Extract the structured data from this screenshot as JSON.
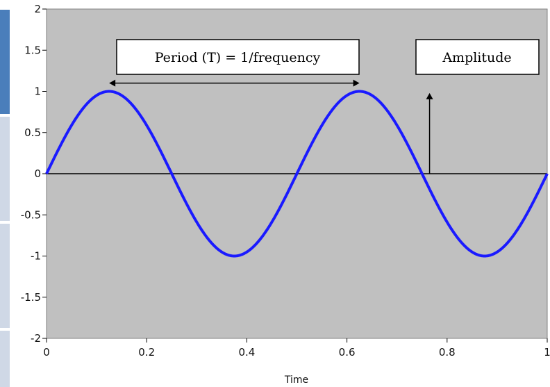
{
  "chart_data": {
    "type": "line",
    "title": "",
    "xlabel": "Time",
    "ylabel": "",
    "xlim": [
      0,
      1
    ],
    "ylim": [
      -2,
      2
    ],
    "x_ticks": [
      0,
      0.2,
      0.4,
      0.6,
      0.8,
      1
    ],
    "x_tick_labels": [
      "0",
      "0.2",
      "0.4",
      "0.6",
      "0.8",
      "1"
    ],
    "y_ticks": [
      2,
      1.5,
      1,
      0.5,
      0,
      -0.5,
      -1,
      -1.5,
      -2
    ],
    "y_tick_labels": [
      "2",
      "1.5",
      "1",
      "0.5",
      "0",
      "-0.5",
      "-1",
      "-1.5",
      "-2"
    ],
    "grid": false,
    "series": [
      {
        "function": "sine",
        "amplitude": 1,
        "frequency": 2,
        "x_range": [
          0,
          1
        ],
        "sample_points": [
          {
            "x": 0,
            "y": 0
          },
          {
            "x": 0.125,
            "y": 1
          },
          {
            "x": 0.25,
            "y": 0
          },
          {
            "x": 0.375,
            "y": -1
          },
          {
            "x": 0.5,
            "y": 0
          },
          {
            "x": 0.625,
            "y": 1
          },
          {
            "x": 0.75,
            "y": 0
          },
          {
            "x": 0.875,
            "y": -1
          },
          {
            "x": 1,
            "y": 0
          }
        ],
        "color": "#1a1aff"
      }
    ],
    "annotations": [
      {
        "id": "period",
        "text": "Period (T) = 1/frequency",
        "arrow": "double-headed horizontal",
        "from": {
          "x": 0.125,
          "y": 1.1
        },
        "to": {
          "x": 0.625,
          "y": 1.1
        }
      },
      {
        "id": "amplitude",
        "text": "Amplitude",
        "arrow": "vertical up",
        "from": {
          "x": 0.765,
          "y": 0
        },
        "to": {
          "x": 0.765,
          "y": 0.98
        }
      }
    ],
    "colors": {
      "plot_background": "#c0c0c0",
      "line": "#1a1aff",
      "zero_line": "#000000",
      "annotation_box": "#ffffff",
      "side_strip_dark": "#4a7ebb",
      "side_strip_light": "#cfd8e6"
    }
  }
}
